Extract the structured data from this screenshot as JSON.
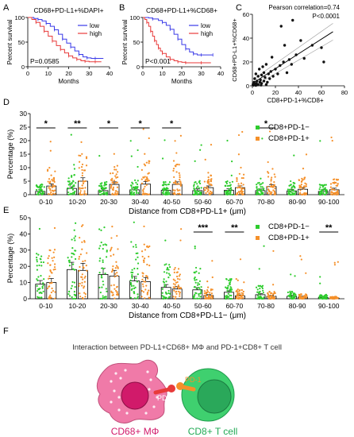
{
  "panel_letters": [
    "A",
    "B",
    "C",
    "D",
    "E",
    "F"
  ],
  "chart_data": [
    {
      "id": "A",
      "type": "line",
      "title": "CD68+PD-L1+%DAPI+",
      "xlabel": "Months",
      "ylabel": "Percent survival",
      "xticks": [
        0,
        10,
        20,
        30,
        40
      ],
      "yticks": [
        0,
        50,
        100
      ],
      "xlim": [
        0,
        40
      ],
      "ylim": [
        0,
        100
      ],
      "annotation": "P=0.0585",
      "legend_position": "top-right",
      "series": [
        {
          "name": "low",
          "color": "#3a3ae8",
          "x": [
            0,
            3,
            5,
            7,
            9,
            11,
            13,
            15,
            17,
            19,
            21,
            23,
            25,
            27,
            29,
            31,
            33,
            37
          ],
          "y": [
            100,
            98,
            96,
            93,
            88,
            82,
            75,
            66,
            56,
            48,
            40,
            32,
            25,
            20,
            18,
            17,
            17,
            17
          ]
        },
        {
          "name": "high",
          "color": "#e83a3a",
          "x": [
            0,
            2,
            4,
            6,
            8,
            10,
            12,
            14,
            16,
            18,
            20,
            22,
            24,
            26,
            28,
            30,
            33,
            36
          ],
          "y": [
            100,
            96,
            90,
            82,
            72,
            62,
            52,
            43,
            35,
            28,
            22,
            18,
            15,
            12,
            11,
            10,
            10,
            10
          ]
        }
      ]
    },
    {
      "id": "B",
      "type": "line",
      "title": "CD68+PD-L1+%CD68+",
      "xlabel": "Months",
      "ylabel": "Percent survival",
      "xticks": [
        0,
        10,
        20,
        30,
        40
      ],
      "yticks": [
        0,
        50,
        100
      ],
      "xlim": [
        0,
        40
      ],
      "ylim": [
        0,
        100
      ],
      "annotation": "P<0.001",
      "legend_position": "top-right",
      "series": [
        {
          "name": "low",
          "color": "#3a3ae8",
          "x": [
            0,
            3,
            5,
            8,
            10,
            12,
            14,
            16,
            18,
            20,
            22,
            24,
            26,
            28,
            30,
            33,
            36
          ],
          "y": [
            100,
            99,
            97,
            94,
            90,
            84,
            76,
            66,
            56,
            45,
            36,
            30,
            26,
            24,
            24,
            24,
            24
          ]
        },
        {
          "name": "high",
          "color": "#e83a3a",
          "x": [
            0,
            1,
            2,
            3,
            4,
            5,
            6,
            7,
            8,
            9,
            10,
            12,
            14,
            16,
            18,
            20,
            22,
            26,
            30,
            35
          ],
          "y": [
            100,
            96,
            90,
            82,
            72,
            62,
            53,
            45,
            38,
            32,
            27,
            20,
            15,
            12,
            10,
            9,
            8,
            8,
            8,
            8
          ]
        }
      ]
    },
    {
      "id": "C",
      "type": "scatter",
      "annotation_lines": [
        "Pearson correlation=0.74",
        "P<0.0001"
      ],
      "xlabel": "CD8+PD-1+%CD8+",
      "ylabel": "CD68+PD-L1+%CD68+",
      "xticks": [
        0,
        20,
        40,
        60,
        80
      ],
      "yticks": [
        0,
        20,
        40,
        60
      ],
      "xlim": [
        0,
        80
      ],
      "ylim": [
        0,
        60
      ],
      "fit": {
        "slope": 0.62,
        "intercept": 2
      },
      "points": [
        [
          0.5,
          1
        ],
        [
          1,
          0.5
        ],
        [
          1.5,
          3
        ],
        [
          2,
          6
        ],
        [
          2.5,
          1.5
        ],
        [
          3,
          10
        ],
        [
          3.5,
          2
        ],
        [
          4,
          4
        ],
        [
          5,
          8
        ],
        [
          5,
          1
        ],
        [
          6,
          14
        ],
        [
          6.5,
          3
        ],
        [
          7,
          5
        ],
        [
          8,
          9
        ],
        [
          8,
          2
        ],
        [
          9,
          16
        ],
        [
          10,
          4
        ],
        [
          10,
          11
        ],
        [
          11,
          7
        ],
        [
          12,
          18
        ],
        [
          13,
          3
        ],
        [
          14,
          10
        ],
        [
          15,
          6
        ],
        [
          16,
          12
        ],
        [
          17,
          24
        ],
        [
          18,
          8
        ],
        [
          20,
          14
        ],
        [
          22,
          10
        ],
        [
          24,
          17
        ],
        [
          25,
          50
        ],
        [
          27,
          20
        ],
        [
          28,
          34
        ],
        [
          30,
          11
        ],
        [
          32,
          22
        ],
        [
          34,
          18
        ],
        [
          35,
          55
        ],
        [
          38,
          26
        ],
        [
          42,
          38
        ],
        [
          45,
          23
        ],
        [
          52,
          34
        ],
        [
          60,
          32
        ],
        [
          62,
          20
        ],
        [
          3,
          0.3
        ],
        [
          4.5,
          0.8
        ],
        [
          7.5,
          0.6
        ],
        [
          12,
          1
        ]
      ]
    },
    {
      "id": "D",
      "type": "bar",
      "xlabel": "Distance from CD8+PD-L1+ (μm)",
      "ylabel": "Percentage (%)",
      "yticks": [
        0,
        5,
        10,
        15,
        20,
        25,
        30
      ],
      "ylim": [
        0,
        30
      ],
      "categories": [
        "0-10",
        "10-20",
        "20-30",
        "30-40",
        "40-50",
        "50-60",
        "60-70",
        "70-80",
        "80-90",
        "90-100"
      ],
      "significance": [
        "*",
        "**",
        "*",
        "*",
        "*",
        "",
        "",
        "*",
        "",
        ""
      ],
      "series": [
        {
          "name": "CD8+PD-1−",
          "color": "#2ecc2e",
          "values": [
            1.2,
            2.3,
            1.5,
            1.8,
            1.6,
            1.5,
            1.6,
            1.5,
            1.4,
            1.2
          ]
        },
        {
          "name": "CD8+PD-1+",
          "color": "#f5902a",
          "values": [
            3.2,
            5.0,
            3.8,
            3.9,
            3.8,
            2.6,
            2.6,
            3.0,
            2.0,
            1.8
          ]
        }
      ]
    },
    {
      "id": "E",
      "type": "bar",
      "xlabel": "Distance from CD8+PD-L1− (μm)",
      "ylabel": "Percentage (%)",
      "yticks": [
        0,
        10,
        20,
        30,
        40,
        50
      ],
      "ylim": [
        0,
        50
      ],
      "categories": [
        "0-10",
        "10-20",
        "20-30",
        "30-40",
        "40-50",
        "50-60",
        "60-70",
        "70-80",
        "80-90",
        "90-100"
      ],
      "significance": [
        "",
        "",
        "",
        "",
        "",
        "***",
        "**",
        "",
        "",
        "**"
      ],
      "series": [
        {
          "name": "CD8+PD-1−",
          "color": "#2ecc2e",
          "values": [
            9,
            18,
            15,
            11,
            7,
            5.5,
            4,
            2.5,
            1.5,
            0.8
          ]
        },
        {
          "name": "CD8+PD-1+",
          "color": "#f5902a",
          "values": [
            10,
            17.5,
            14,
            10.5,
            6,
            2,
            1.8,
            1.5,
            1,
            0.4
          ]
        }
      ]
    }
  ],
  "panelF": {
    "title": "Interaction between PD-L1+CD68+ MΦ and PD-1+CD8+ T cell",
    "macrophage_label": "CD68+ MΦ",
    "tcell_label": "CD8+ T cell",
    "pdl1_label": "PD-L1",
    "pd1_label": "PD-1",
    "colors": {
      "macrophage": "#f07aa8",
      "macrophage_nucleus": "#d11a6a",
      "tcell": "#3fd06f",
      "tcell_nucleus": "#2aa85a",
      "pdl1": "#e83a3a",
      "pd1": "#f5902a",
      "mac_text": "#d11a6a",
      "tcell_text": "#22aa55"
    }
  }
}
